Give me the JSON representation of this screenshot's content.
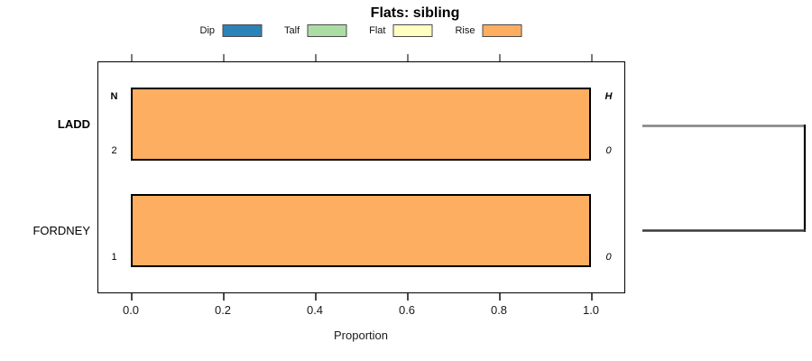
{
  "chart_data": {
    "type": "bar",
    "orientation": "horizontal",
    "title": "Flats: sibling",
    "xlabel": "Proportion",
    "xlim": [
      0,
      1
    ],
    "x_ticks": [
      0.0,
      0.2,
      0.4,
      0.6,
      0.8,
      1.0
    ],
    "x_tick_labels": [
      "0.0",
      "0.2",
      "0.4",
      "0.6",
      "0.8",
      "1.0"
    ],
    "grid": false,
    "legend_position": "top",
    "legend": [
      {
        "label": "Dip",
        "color": "#2B83BA"
      },
      {
        "label": "Talf",
        "color": "#ABDDA4"
      },
      {
        "label": "Flat",
        "color": "#FFFFBF"
      },
      {
        "label": "Rise",
        "color": "#FDAE61"
      }
    ],
    "categories": [
      "LADD",
      "FORDNEY"
    ],
    "series": [
      {
        "name": "Dip",
        "color": "#2B83BA",
        "values": [
          0,
          0
        ]
      },
      {
        "name": "Talf",
        "color": "#ABDDA4",
        "values": [
          0,
          0
        ]
      },
      {
        "name": "Flat",
        "color": "#FFFFBF",
        "values": [
          0,
          0
        ]
      },
      {
        "name": "Rise",
        "color": "#FDAE61",
        "values": [
          1.0,
          1.0
        ]
      }
    ],
    "row_annotations": [
      {
        "category": "LADD",
        "bold": true,
        "left_header": "N",
        "left_count": "2",
        "right_header": "H",
        "right_count": "0"
      },
      {
        "category": "FORDNEY",
        "bold": false,
        "left_header": "",
        "left_count": "1",
        "right_header": "",
        "right_count": "0"
      }
    ],
    "right_bracket": {
      "rows": [
        "LADD",
        "FORDNEY"
      ]
    }
  },
  "colors": {
    "bar_border": "#000000",
    "plot_border": "#000000",
    "bracket_top": "#8A8A8A",
    "bracket_right": "#000000",
    "bracket_bottom": "#3A3A3A",
    "tick_top": "#7A7A7A",
    "tick_bottom": "#4A4A4A"
  }
}
